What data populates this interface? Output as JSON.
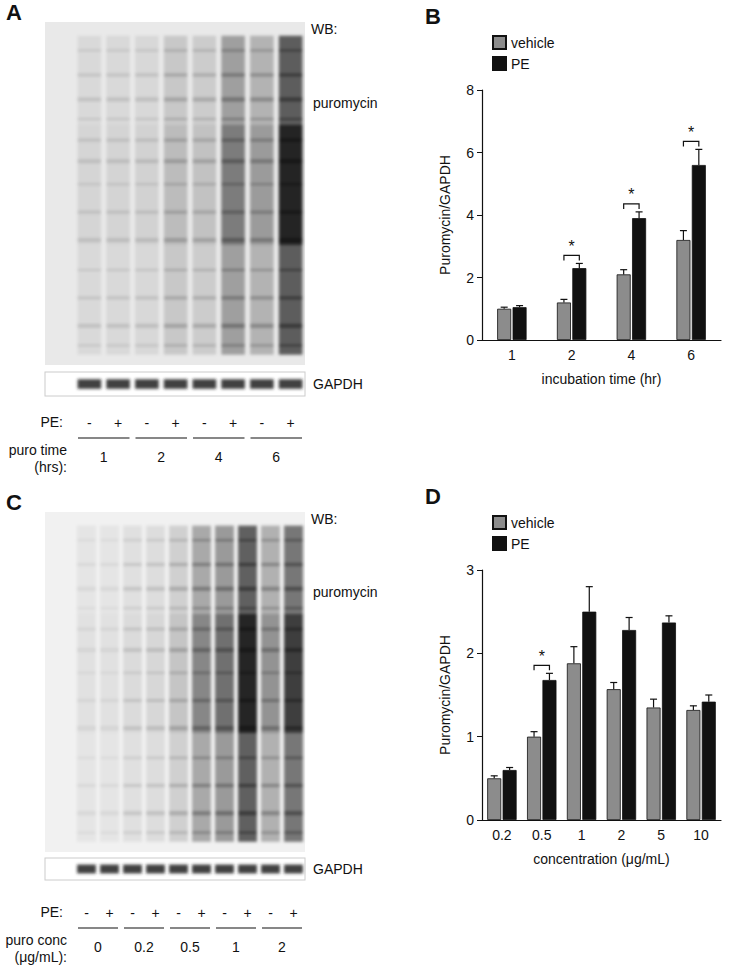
{
  "blots": [
    {
      "panel": "A",
      "label": "WB:",
      "target": "puromycin",
      "loading_control": "GAPDH",
      "row_labels": [
        "PE:",
        "puro time (hrs):"
      ],
      "pe": [
        "-",
        "+",
        "-",
        "+",
        "-",
        "+",
        "-",
        "+"
      ],
      "groups": [
        "1",
        "2",
        "4",
        "6"
      ]
    },
    {
      "panel": "C",
      "label": "WB:",
      "target": "puromycin",
      "loading_control": "GAPDH",
      "row_labels": [
        "PE:",
        "puro conc (μg/mL):"
      ],
      "pe": [
        "-",
        "+",
        "-",
        "+",
        "-",
        "+",
        "-",
        "+",
        "-",
        "+"
      ],
      "groups": [
        "0",
        "0.2",
        "0.5",
        "1",
        "2"
      ]
    }
  ],
  "chart_data": [
    {
      "type": "bar",
      "title": "B",
      "categories": [
        "1",
        "2",
        "4",
        "6"
      ],
      "x_label": "incubation time (hr)",
      "y_label": "Puromycin/GAPDH",
      "ylim": [
        0,
        8
      ],
      "yticks": [
        0,
        2,
        4,
        6,
        8
      ],
      "grid": false,
      "legend": "top-left",
      "series": [
        {
          "name": "vehicle",
          "color": "#8c8c8c",
          "values": [
            1.0,
            1.2,
            2.1,
            3.2
          ],
          "errors": [
            0.05,
            0.1,
            0.15,
            0.3
          ]
        },
        {
          "name": "PE",
          "color": "#111111",
          "values": [
            1.05,
            2.3,
            3.9,
            5.6
          ],
          "errors": [
            0.05,
            0.15,
            0.2,
            0.5
          ]
        }
      ],
      "annotations": [
        {
          "category": "2",
          "text": "*"
        },
        {
          "category": "4",
          "text": "*"
        },
        {
          "category": "6",
          "text": "*"
        }
      ]
    },
    {
      "type": "bar",
      "title": "D",
      "categories": [
        "0.2",
        "0.5",
        "1",
        "2",
        "5",
        "10"
      ],
      "x_label": "concentration (μg/mL)",
      "y_label": "Puromycin/GAPDH",
      "ylim": [
        0,
        3
      ],
      "yticks": [
        0,
        1,
        2,
        3
      ],
      "grid": false,
      "legend": "top-left",
      "series": [
        {
          "name": "vehicle",
          "color": "#8c8c8c",
          "values": [
            0.5,
            1.0,
            1.88,
            1.57,
            1.35,
            1.32
          ],
          "errors": [
            0.03,
            0.06,
            0.2,
            0.08,
            0.1,
            0.05
          ]
        },
        {
          "name": "PE",
          "color": "#111111",
          "values": [
            0.6,
            1.68,
            2.5,
            2.28,
            2.37,
            1.42
          ],
          "errors": [
            0.03,
            0.08,
            0.3,
            0.15,
            0.08,
            0.08
          ]
        }
      ],
      "annotations": [
        {
          "category": "0.5",
          "text": "*"
        }
      ]
    }
  ]
}
